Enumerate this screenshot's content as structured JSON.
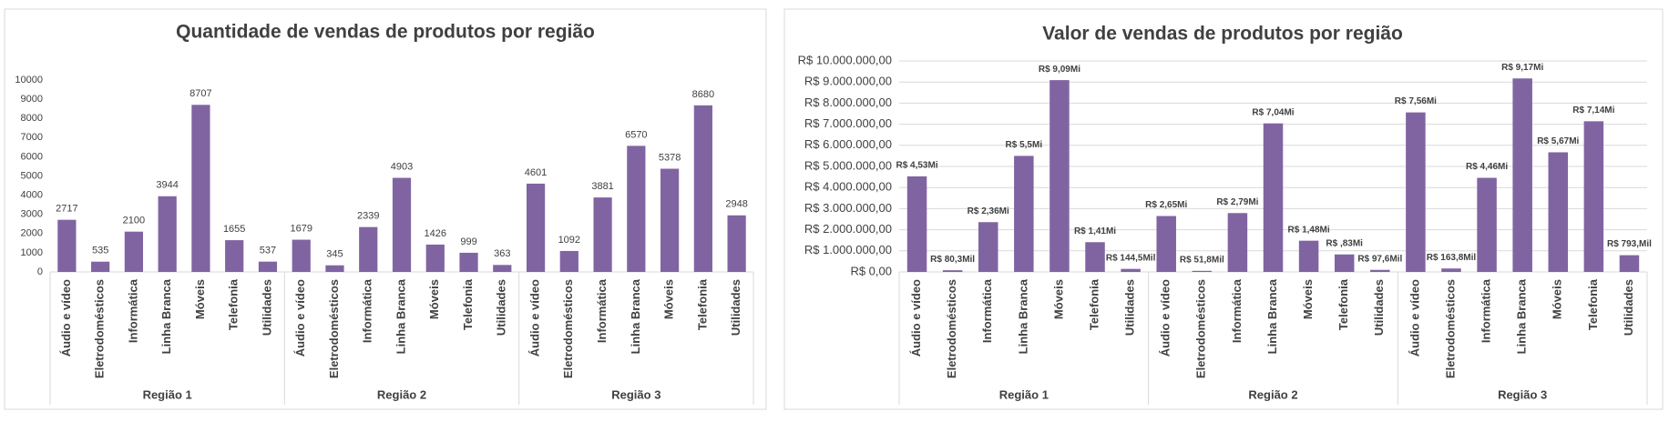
{
  "chart_data": [
    {
      "type": "bar",
      "title": "Quantidade de vendas de produtos por região",
      "categories": [
        "Áudio e vídeo",
        "Eletrodomésticos",
        "Informática",
        "Linha Branca",
        "Móveis",
        "Telefonia",
        "Utilidades",
        "Áudio e vídeo",
        "Eletrodomésticos",
        "Informática",
        "Linha Branca",
        "Móveis",
        "Telefonia",
        "Utilidades",
        "Áudio e vídeo",
        "Eletrodomésticos",
        "Informática",
        "Linha Branca",
        "Móveis",
        "Telefonia",
        "Utilidades"
      ],
      "groups": [
        "Região 1",
        "Região 2",
        "Região 3"
      ],
      "values": [
        2717,
        535,
        2100,
        3944,
        8707,
        1655,
        537,
        1679,
        345,
        2339,
        4903,
        1426,
        999,
        363,
        4601,
        1092,
        3881,
        6570,
        5378,
        8680,
        2948
      ],
      "color": "#8064a2",
      "ylim": [
        0,
        10000
      ],
      "yticks": [
        0,
        1000,
        2000,
        3000,
        4000,
        5000,
        6000,
        7000,
        8000,
        9000,
        10000
      ],
      "grid": false
    },
    {
      "type": "bar",
      "title": "Valor de vendas de produtos por região",
      "categories": [
        "Áudio e vídeo",
        "Eletrodomésticos",
        "Informática",
        "Linha Branca",
        "Móveis",
        "Telefonia",
        "Utilidades",
        "Áudio e vídeo",
        "Eletrodomésticos",
        "Informática",
        "Linha Branca",
        "Móveis",
        "Telefonia",
        "Utilidades",
        "Áudio e vídeo",
        "Eletrodomésticos",
        "Informática",
        "Linha Branca",
        "Móveis",
        "Telefonia",
        "Utilidades"
      ],
      "groups": [
        "Região 1",
        "Região 2",
        "Região 3"
      ],
      "values": [
        4530000,
        80300,
        2360000,
        5500000,
        9090000,
        1410000,
        144500,
        2650000,
        51800,
        2790000,
        7040000,
        1480000,
        830000,
        97600,
        7560000,
        163800,
        4460000,
        9170000,
        5670000,
        7140000,
        793000
      ],
      "value_labels": [
        "R$ 4,53Mi",
        "R$ 80,3Mil",
        "R$ 2,36Mi",
        "R$ 5,5Mi",
        "R$ 9,09Mi",
        "R$ 1,41Mi",
        "R$ 144,5Mil",
        "R$ 2,65Mi",
        "R$ 51,8Mil",
        "R$ 2,79Mi",
        "R$ 7,04Mi",
        "R$ 1,48Mi",
        "R$ ,83Mi",
        "R$ 97,6Mil",
        "R$ 7,56Mi",
        "R$ 163,8Mil",
        "R$ 4,46Mi",
        "R$ 9,17Mi",
        "R$ 5,67Mi",
        "R$ 7,14Mi",
        "R$ 793,Mil"
      ],
      "color": "#8064a2",
      "ylim": [
        0,
        10000000
      ],
      "yticks": [
        {
          "value": 0,
          "label": "R$ 0,00"
        },
        {
          "value": 1000000,
          "label": "R$ 1.000.000,00"
        },
        {
          "value": 2000000,
          "label": "R$ 2.000.000,00"
        },
        {
          "value": 3000000,
          "label": "R$ 3.000.000,00"
        },
        {
          "value": 4000000,
          "label": "R$ 4.000.000,00"
        },
        {
          "value": 5000000,
          "label": "R$ 5.000.000,00"
        },
        {
          "value": 6000000,
          "label": "R$ 6.000.000,00"
        },
        {
          "value": 7000000,
          "label": "R$ 7.000.000,00"
        },
        {
          "value": 8000000,
          "label": "R$ 8.000.000,00"
        },
        {
          "value": 9000000,
          "label": "R$ 9.000.000,00"
        },
        {
          "value": 10000000,
          "label": "R$ 10.000.000,00"
        }
      ],
      "grid": true
    }
  ]
}
